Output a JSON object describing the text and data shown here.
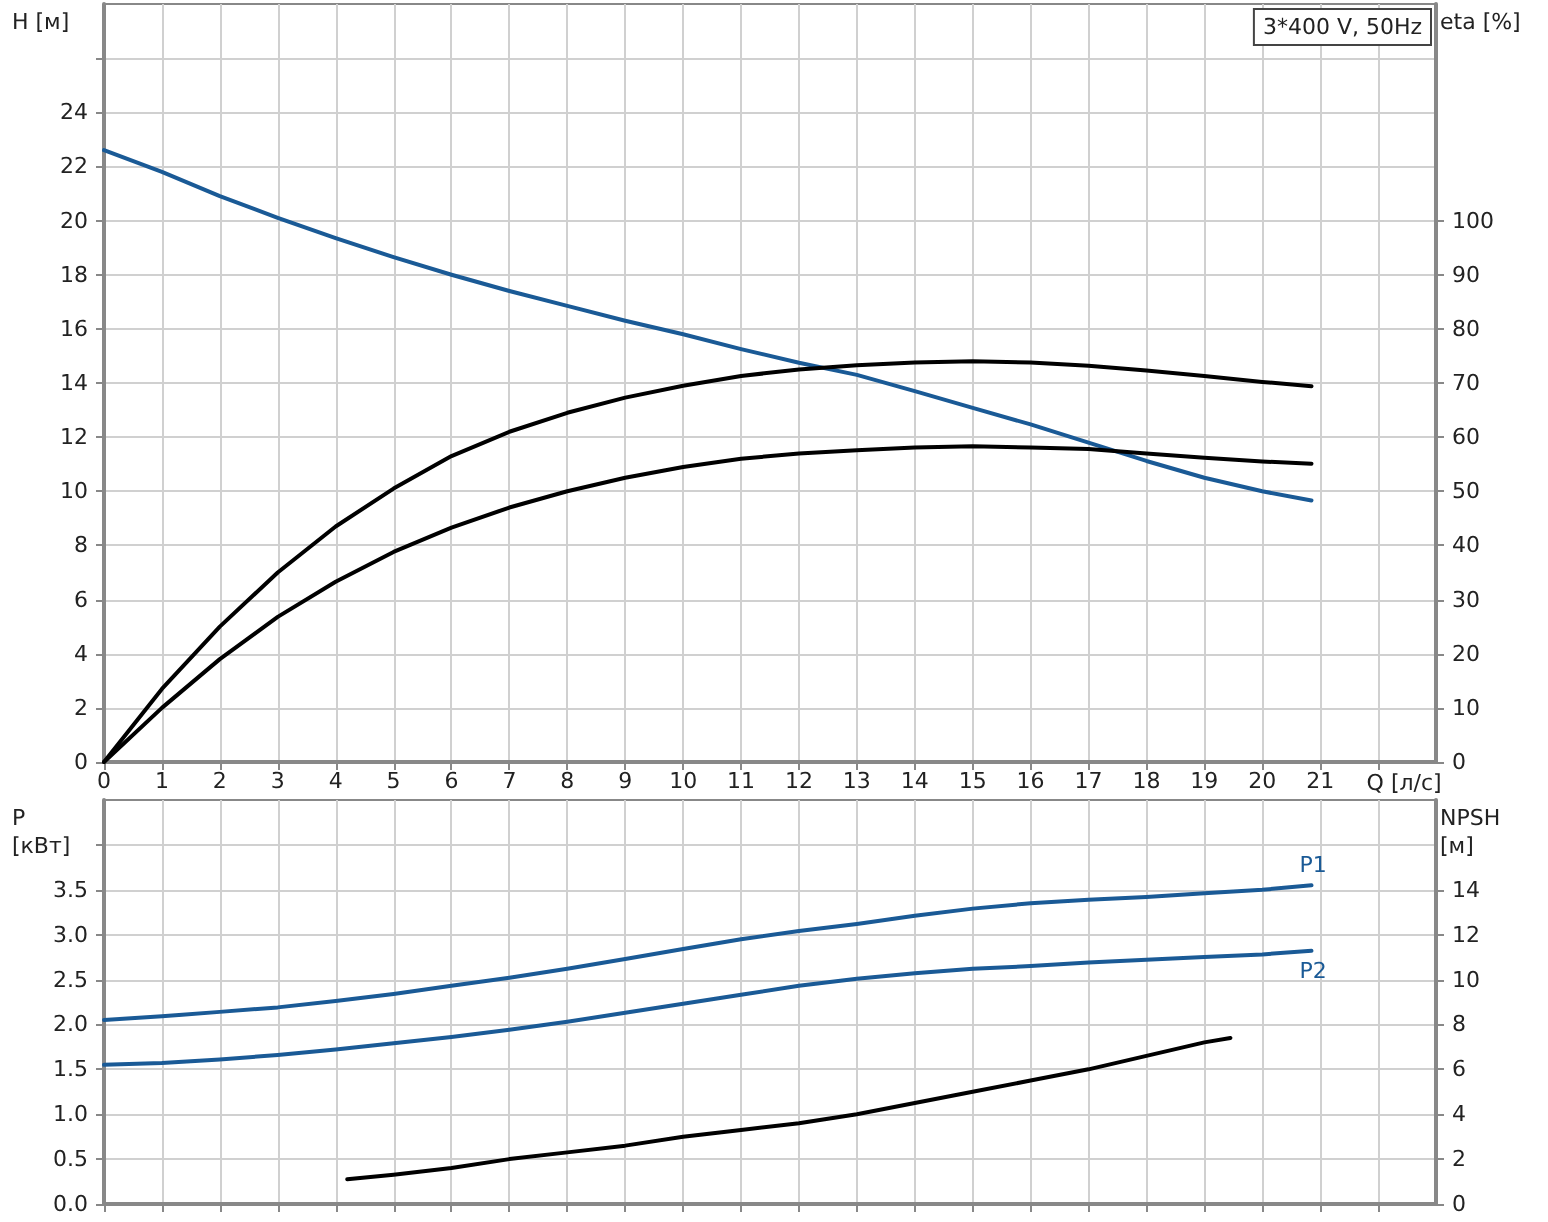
{
  "chart_data": [
    {
      "type": "line",
      "xlabel": "Q [л/с]",
      "ylabel": "H [м]",
      "y2label": "eta [%]",
      "annotations": [
        "3*400 V, 50Hz"
      ],
      "x": [
        0,
        1,
        2,
        3,
        4,
        5,
        6,
        7,
        8,
        9,
        10,
        11,
        12,
        13,
        14,
        15,
        16,
        17,
        18,
        19,
        20,
        20.85
      ],
      "series": [
        {
          "color": "#1a5a96",
          "values": [
            22.6,
            21.8,
            20.9,
            20.1,
            19.35,
            18.65,
            18.0,
            17.4,
            16.85,
            16.3,
            15.8,
            15.25,
            14.75,
            14.3,
            13.7,
            13.08,
            12.47,
            11.8,
            11.12,
            10.5,
            10.0,
            9.66
          ]
        },
        {
          "color": "#000000",
          "axis": "y2",
          "values": [
            0,
            13.5,
            25,
            35,
            43.5,
            50.5,
            56.5,
            61,
            64.5,
            67.3,
            69.5,
            71.3,
            72.5,
            73.3,
            73.8,
            74,
            73.8,
            73.2,
            72.3,
            71.3,
            70.2,
            69.4
          ]
        },
        {
          "color": "#000000",
          "axis": "y2",
          "values": [
            0,
            10,
            19,
            26.8,
            33.3,
            38.8,
            43.3,
            47,
            50,
            52.5,
            54.5,
            56,
            57,
            57.6,
            58.1,
            58.3,
            58.1,
            57.8,
            57,
            56.2,
            55.5,
            55.1
          ]
        }
      ],
      "xlim": [
        0,
        23
      ],
      "xticks": [
        0,
        1,
        2,
        3,
        4,
        5,
        6,
        7,
        8,
        9,
        10,
        11,
        12,
        13,
        14,
        15,
        16,
        17,
        18,
        19,
        20,
        21,
        {
          "value": 22,
          "label": null
        }
      ],
      "ylim": [
        0,
        28
      ],
      "yticks": [
        0,
        2,
        4,
        6,
        8,
        10,
        12,
        14,
        16,
        18,
        20,
        22,
        24,
        {
          "value": 26,
          "label": null
        }
      ],
      "y2lim": [
        0,
        140
      ],
      "y2ticks": [
        0,
        10,
        20,
        30,
        40,
        50,
        60,
        70,
        80,
        90,
        100
      ],
      "grid": true
    },
    {
      "type": "line",
      "ylabel": "P [кВт]",
      "y2label": "NPSH [м]",
      "x": [
        0,
        1,
        2,
        3,
        4,
        5,
        6,
        7,
        8,
        9,
        10,
        11,
        12,
        13,
        14,
        15,
        16,
        17,
        18,
        19,
        20,
        20.85
      ],
      "series": [
        {
          "name": "P1",
          "color": "#1a5a96",
          "values": [
            2.05,
            2.09,
            2.14,
            2.19,
            2.26,
            2.34,
            2.43,
            2.52,
            2.62,
            2.73,
            2.84,
            2.95,
            3.04,
            3.12,
            3.21,
            3.29,
            3.35,
            3.39,
            3.42,
            3.46,
            3.5,
            3.55
          ]
        },
        {
          "name": "P2",
          "color": "#1a5a96",
          "values": [
            1.55,
            1.57,
            1.61,
            1.66,
            1.72,
            1.79,
            1.86,
            1.94,
            2.03,
            2.13,
            2.23,
            2.33,
            2.43,
            2.51,
            2.57,
            2.62,
            2.65,
            2.69,
            2.72,
            2.75,
            2.78,
            2.82
          ]
        },
        {
          "color": "#000000",
          "axis": "y2",
          "x": [
            4.2,
            5,
            6,
            7,
            8,
            9,
            10,
            11,
            12,
            13,
            14,
            15,
            16,
            17,
            18,
            19,
            19.45
          ],
          "values": [
            1.1,
            1.3,
            1.6,
            2.0,
            2.3,
            2.6,
            3.0,
            3.3,
            3.6,
            4.0,
            4.5,
            5.0,
            5.5,
            6.0,
            6.6,
            7.2,
            7.4
          ]
        }
      ],
      "xlim": [
        0,
        23
      ],
      "xticks": [
        0,
        1,
        2,
        3,
        4,
        5,
        6,
        7,
        8,
        9,
        10,
        11,
        12,
        13,
        14,
        15,
        16,
        17,
        18,
        19,
        20,
        21,
        {
          "value": 22,
          "label": null
        }
      ],
      "ylim": [
        0,
        4.5
      ],
      "yticks": [
        {
          "value": 0,
          "label": "0.0"
        },
        0.5,
        {
          "value": 1,
          "label": "1.0"
        },
        1.5,
        {
          "value": 2,
          "label": "2.0"
        },
        2.5,
        {
          "value": 3,
          "label": "3.0"
        },
        3.5,
        {
          "value": 4,
          "label": null
        }
      ],
      "y2lim": [
        0,
        18
      ],
      "y2ticks": [
        0,
        2,
        4,
        6,
        8,
        10,
        12,
        14
      ],
      "tick_labels": "y",
      "grid": true
    }
  ]
}
